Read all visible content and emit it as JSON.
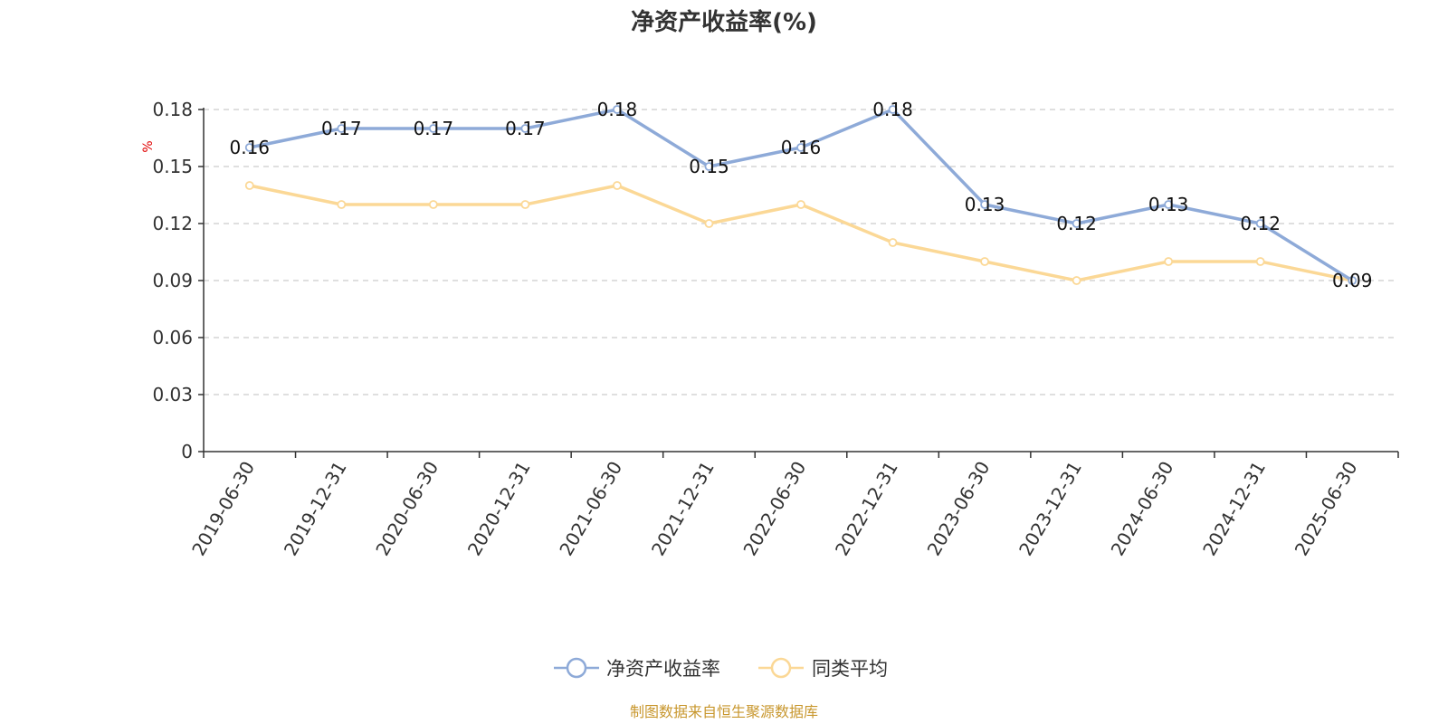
{
  "chart_data": {
    "type": "line",
    "title": "净资产收益率(%)",
    "unit_label": "%",
    "categories": [
      "2019-06-30",
      "2019-12-31",
      "2020-06-30",
      "2020-12-31",
      "2021-06-30",
      "2021-12-31",
      "2022-06-30",
      "2022-12-31",
      "2023-06-30",
      "2023-12-31",
      "2024-06-30",
      "2024-12-31",
      "2025-06-30"
    ],
    "yticks": [
      "0",
      "0.03",
      "0.06",
      "0.09",
      "0.12",
      "0.15",
      "0.18"
    ],
    "ylim": [
      0,
      0.18
    ],
    "grid": true,
    "legend_position": "bottom",
    "series": [
      {
        "name": "净资产收益率",
        "color": "#8eaad8",
        "values": [
          0.16,
          0.17,
          0.17,
          0.17,
          0.18,
          0.15,
          0.16,
          0.18,
          0.13,
          0.12,
          0.13,
          0.12,
          0.09
        ],
        "labels": [
          "0.16",
          "0.17",
          "0.17",
          "0.17",
          "0.18",
          "0.15",
          "0.16",
          "0.18",
          "0.13",
          "0.12",
          "0.13",
          "0.12",
          "0.09"
        ]
      },
      {
        "name": "同类平均",
        "color": "#fbd896",
        "values": [
          0.14,
          0.13,
          0.13,
          0.13,
          0.14,
          0.12,
          0.13,
          0.11,
          0.1,
          0.09,
          0.1,
          0.1,
          0.09
        ]
      }
    ],
    "source": "制图数据来自恒生聚源数据库"
  }
}
